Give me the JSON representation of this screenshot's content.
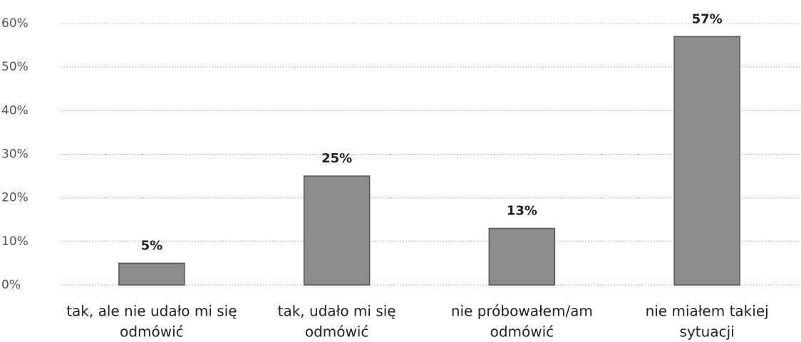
{
  "chart_data": {
    "type": "bar",
    "categories": [
      [
        "tak, ale nie udało mi się",
        "odmówić"
      ],
      [
        "tak, udało mi się",
        "odmówić"
      ],
      [
        "nie próbowałem/am",
        "odmówić"
      ],
      [
        "nie miałem takiej",
        "sytuacji"
      ]
    ],
    "values": [
      5,
      25,
      13,
      57
    ],
    "value_labels": [
      "5%",
      "25%",
      "13%",
      "57%"
    ],
    "color": "#8c8c8c",
    "ylim": [
      0,
      60
    ],
    "yticks": [
      {
        "value": 0,
        "label": "0%"
      },
      {
        "value": 10,
        "label": "10%"
      },
      {
        "value": 20,
        "label": "20%"
      },
      {
        "value": 30,
        "label": "30%"
      },
      {
        "value": 40,
        "label": "40%"
      },
      {
        "value": 50,
        "label": "50%"
      },
      {
        "value": 60,
        "label": "60%"
      }
    ],
    "grid": true
  }
}
